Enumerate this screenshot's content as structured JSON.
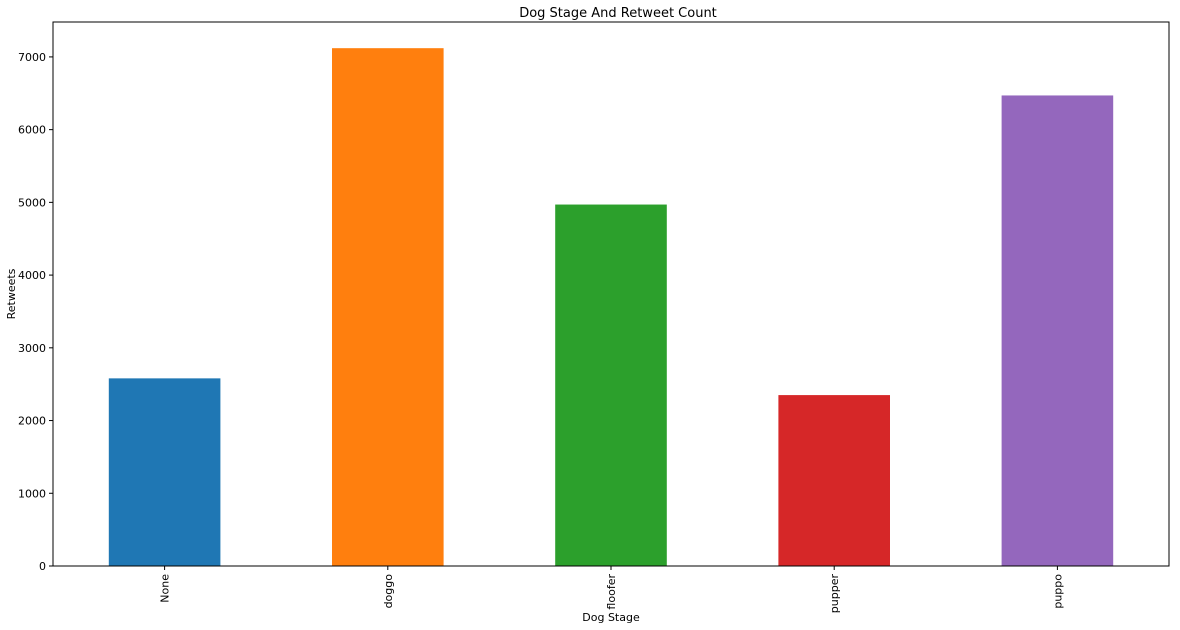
{
  "chart_data": {
    "type": "bar",
    "title": "Dog Stage And Retweet Count",
    "xlabel": "Dog Stage",
    "ylabel": "Retweets",
    "categories": [
      "None",
      "doggo",
      "floofer",
      "pupper",
      "puppo"
    ],
    "values": [
      2580,
      7120,
      4970,
      2350,
      6470
    ],
    "colors": [
      "#1f77b4",
      "#ff7f0e",
      "#2ca02c",
      "#d62728",
      "#9467bd"
    ],
    "ylim": [
      0,
      7480
    ],
    "yticks": [
      0,
      1000,
      2000,
      3000,
      4000,
      5000,
      6000,
      7000
    ],
    "grid": false
  }
}
